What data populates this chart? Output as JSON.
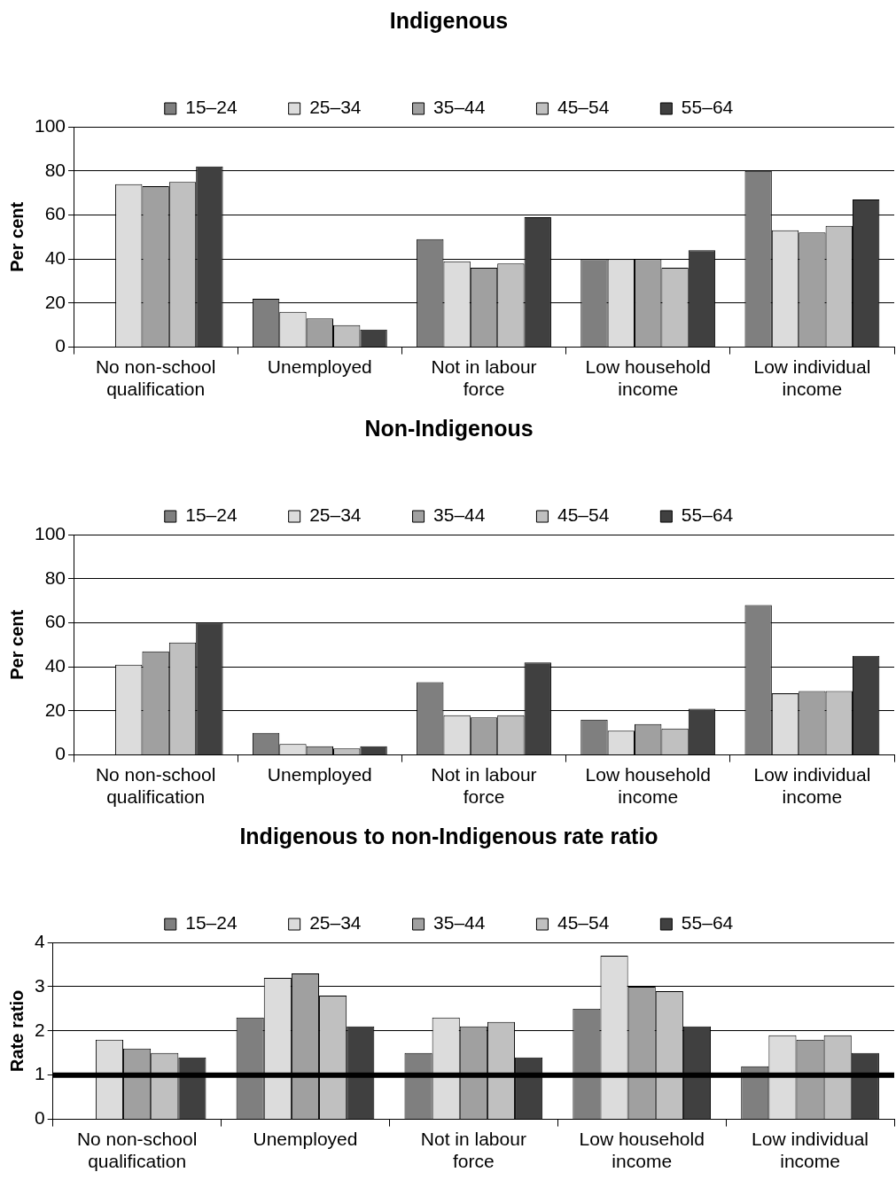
{
  "chart_data": [
    {
      "type": "bar",
      "title": "Indigenous",
      "ylabel": "Per cent",
      "categories": [
        "No non-school qualification",
        "Unemployed",
        "Not in labour force",
        "Low household income",
        "Low individual income"
      ],
      "series": [
        {
          "name": "15–24",
          "color": "#7f7f7f",
          "values": [
            null,
            22,
            49,
            40,
            80
          ]
        },
        {
          "name": "25–34",
          "color": "#dcdcdc",
          "values": [
            74,
            16,
            39,
            40,
            53
          ]
        },
        {
          "name": "35–44",
          "color": "#a0a0a0",
          "values": [
            73,
            13,
            36,
            40,
            52
          ]
        },
        {
          "name": "45–54",
          "color": "#c0c0c0",
          "values": [
            75,
            10,
            38,
            36,
            55
          ]
        },
        {
          "name": "55–64",
          "color": "#404040",
          "values": [
            82,
            8,
            59,
            44,
            67
          ]
        }
      ],
      "ylim": [
        0,
        100
      ],
      "yticks": [
        0,
        20,
        40,
        60,
        80,
        100
      ],
      "grid": "y",
      "legend": "top"
    },
    {
      "type": "bar",
      "title": "Non-Indigenous",
      "ylabel": "Per cent",
      "categories": [
        "No non-school qualification",
        "Unemployed",
        "Not in labour force",
        "Low household income",
        "Low individual income"
      ],
      "series": [
        {
          "name": "15–24",
          "color": "#7f7f7f",
          "values": [
            null,
            10,
            33,
            16,
            68
          ]
        },
        {
          "name": "25–34",
          "color": "#dcdcdc",
          "values": [
            41,
            5,
            18,
            11,
            28
          ]
        },
        {
          "name": "35–44",
          "color": "#a0a0a0",
          "values": [
            47,
            4,
            17,
            14,
            29
          ]
        },
        {
          "name": "45–54",
          "color": "#c0c0c0",
          "values": [
            51,
            3,
            18,
            12,
            29
          ]
        },
        {
          "name": "55–64",
          "color": "#404040",
          "values": [
            60,
            4,
            42,
            21,
            45
          ]
        }
      ],
      "ylim": [
        0,
        100
      ],
      "yticks": [
        0,
        20,
        40,
        60,
        80,
        100
      ],
      "grid": "y",
      "legend": "top"
    },
    {
      "type": "bar",
      "title": "Indigenous to non-Indigenous rate ratio",
      "ylabel": "Rate ratio",
      "categories": [
        "No non-school qualification",
        "Unemployed",
        "Not in labour force",
        "Low household income",
        "Low individual income"
      ],
      "series": [
        {
          "name": "15–24",
          "color": "#7f7f7f",
          "values": [
            null,
            2.3,
            1.5,
            2.5,
            1.2
          ]
        },
        {
          "name": "25–34",
          "color": "#dcdcdc",
          "values": [
            1.8,
            3.2,
            2.3,
            3.7,
            1.9
          ]
        },
        {
          "name": "35–44",
          "color": "#a0a0a0",
          "values": [
            1.6,
            3.3,
            2.1,
            3.0,
            1.8
          ]
        },
        {
          "name": "45–54",
          "color": "#c0c0c0",
          "values": [
            1.5,
            2.8,
            2.2,
            2.9,
            1.9
          ]
        },
        {
          "name": "55–64",
          "color": "#404040",
          "values": [
            1.4,
            2.1,
            1.4,
            2.1,
            1.5
          ]
        }
      ],
      "ylim": [
        0,
        4
      ],
      "yticks": [
        0,
        1,
        2,
        3,
        4
      ],
      "grid": "y",
      "legend": "top",
      "ref_lines": [
        {
          "axis": "y",
          "value": 1,
          "color": "#000000"
        }
      ]
    }
  ]
}
